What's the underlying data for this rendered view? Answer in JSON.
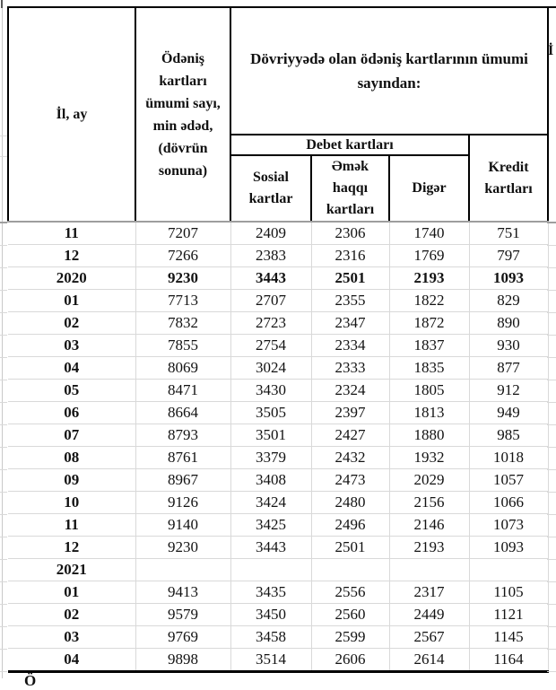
{
  "table": {
    "header": {
      "col_year_month": "İl, ay",
      "col_total": "Ödəniş\nkartları\nümumi sayı,\nmin ədəd,\n(dövrün\nsonuna)",
      "group_in_circulation": "Dövriyyədə olan ödəniş kartlarının ümumi\nsayından:",
      "group_debit": "Debet kartları",
      "col_social": "Sosial\nkartlar",
      "col_salary": "Əmək\nhaqqı\nkartları",
      "col_other": "Digər",
      "col_credit": "Kredit\nkartları"
    },
    "rows": [
      {
        "label": "11",
        "values": [
          "7207",
          "2409",
          "2306",
          "1740",
          "751"
        ],
        "bold": false
      },
      {
        "label": "12",
        "values": [
          "7266",
          "2383",
          "2316",
          "1769",
          "797"
        ],
        "bold": false
      },
      {
        "label": "2020",
        "values": [
          "9230",
          "3443",
          "2501",
          "2193",
          "1093"
        ],
        "bold": true
      },
      {
        "label": "01",
        "values": [
          "7713",
          "2707",
          "2355",
          "1822",
          "829"
        ],
        "bold": false
      },
      {
        "label": "02",
        "values": [
          "7832",
          "2723",
          "2347",
          "1872",
          "890"
        ],
        "bold": false
      },
      {
        "label": "03",
        "values": [
          "7855",
          "2754",
          "2334",
          "1837",
          "930"
        ],
        "bold": false
      },
      {
        "label": "04",
        "values": [
          "8069",
          "3024",
          "2333",
          "1835",
          "877"
        ],
        "bold": false
      },
      {
        "label": "05",
        "values": [
          "8471",
          "3430",
          "2324",
          "1805",
          "912"
        ],
        "bold": false
      },
      {
        "label": "06",
        "values": [
          "8664",
          "3505",
          "2397",
          "1813",
          "949"
        ],
        "bold": false
      },
      {
        "label": "07",
        "values": [
          "8793",
          "3501",
          "2427",
          "1880",
          "985"
        ],
        "bold": false
      },
      {
        "label": "08",
        "values": [
          "8761",
          "3379",
          "2432",
          "1932",
          "1018"
        ],
        "bold": false
      },
      {
        "label": "09",
        "values": [
          "8967",
          "3408",
          "2473",
          "2029",
          "1057"
        ],
        "bold": false
      },
      {
        "label": "10",
        "values": [
          "9126",
          "3424",
          "2480",
          "2156",
          "1066"
        ],
        "bold": false
      },
      {
        "label": "11",
        "values": [
          "9140",
          "3425",
          "2496",
          "2146",
          "1073"
        ],
        "bold": false
      },
      {
        "label": "12",
        "values": [
          "9230",
          "3443",
          "2501",
          "2193",
          "1093"
        ],
        "bold": false
      },
      {
        "label": "2021",
        "values": [
          "",
          "",
          "",
          "",
          ""
        ],
        "bold": true
      },
      {
        "label": "01",
        "values": [
          "9413",
          "3435",
          "2556",
          "2317",
          "1105"
        ],
        "bold": false
      },
      {
        "label": "02",
        "values": [
          "9579",
          "3450",
          "2560",
          "2449",
          "1121"
        ],
        "bold": false
      },
      {
        "label": "03",
        "values": [
          "9769",
          "3458",
          "2599",
          "2567",
          "1145"
        ],
        "bold": false
      },
      {
        "label": "04",
        "values": [
          "9898",
          "3514",
          "2606",
          "2614",
          "1164"
        ],
        "bold": false
      }
    ]
  },
  "fragments": {
    "next_column_text": "İ",
    "footnote_text": "Ö"
  },
  "colors": {
    "header_border": "#000000",
    "header_bottom_border": "#9e9e9e",
    "gridline": "#d9d9d9",
    "text": "#141414"
  }
}
